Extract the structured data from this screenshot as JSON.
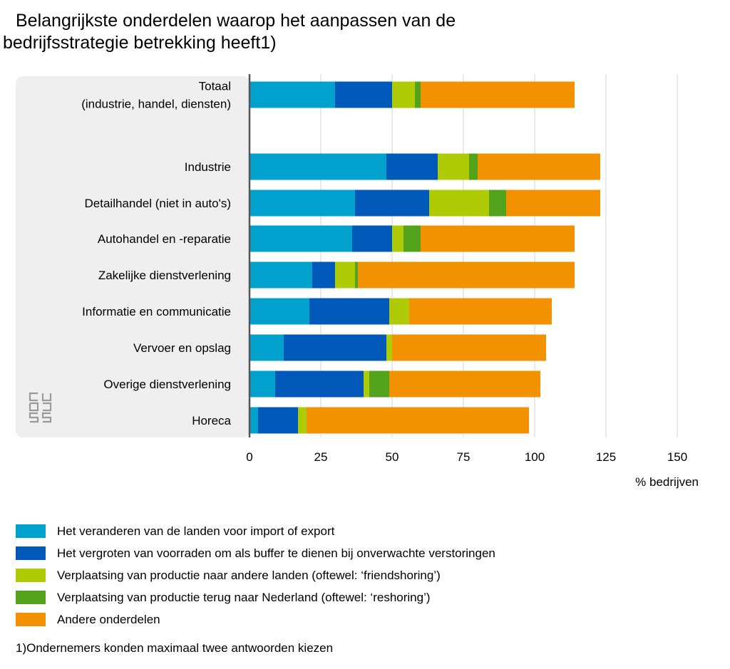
{
  "chart_data": {
    "type": "bar",
    "orientation": "horizontal",
    "stacked": true,
    "title_lines": [
      "Belangrijkste onderdelen waarop het aanpassen van de",
      "bedrijfsstrategie betrekking heeft1)"
    ],
    "categories": [
      [
        "Totaal",
        "(industrie, handel, diensten)"
      ],
      [
        "Industrie"
      ],
      [
        "Detailhandel (niet in auto's)"
      ],
      [
        "Autohandel en -reparatie"
      ],
      [
        "Zakelijke dienstverlening"
      ],
      [
        "Informatie en communicatie"
      ],
      [
        "Vervoer en opslag"
      ],
      [
        "Overige dienstverlening"
      ],
      [
        "Horeca"
      ]
    ],
    "series": [
      {
        "name": "Het veranderen van de landen voor import of export",
        "color": "#00a1cd",
        "values": [
          30,
          48,
          37,
          36,
          22,
          21,
          12,
          9,
          3
        ]
      },
      {
        "name": "Het vergroten van voorraden om als buffer te dienen bij onverwachte verstoringen",
        "color": "#0058b8",
        "values": [
          20,
          18,
          26,
          14,
          8,
          28,
          36,
          31,
          14
        ]
      },
      {
        "name": "Verplaatsing van productie naar andere landen (oftewel: ‘friendshoring’)",
        "color": "#afcb05",
        "values": [
          8,
          11,
          21,
          4,
          7,
          7,
          2,
          2,
          3
        ]
      },
      {
        "name": "Verplaatsing van productie terug naar Nederland (oftewel: ‘reshoring’)",
        "color": "#53a31d",
        "values": [
          2,
          3,
          6,
          6,
          1,
          0,
          0,
          7,
          0
        ]
      },
      {
        "name": "Andere onderdelen",
        "color": "#f39200",
        "values": [
          54,
          43,
          33,
          54,
          76,
          50,
          54,
          53,
          78
        ]
      }
    ],
    "xlim": [
      0,
      150
    ],
    "xticks": [
      "0",
      "25",
      "50",
      "75",
      "100",
      "125",
      "150"
    ],
    "xlabel": "% bedrijven",
    "grid": true,
    "legend_position": "bottom",
    "footnote": "1)Ondernemers konden maximaal twee antwoorden kiezen"
  }
}
